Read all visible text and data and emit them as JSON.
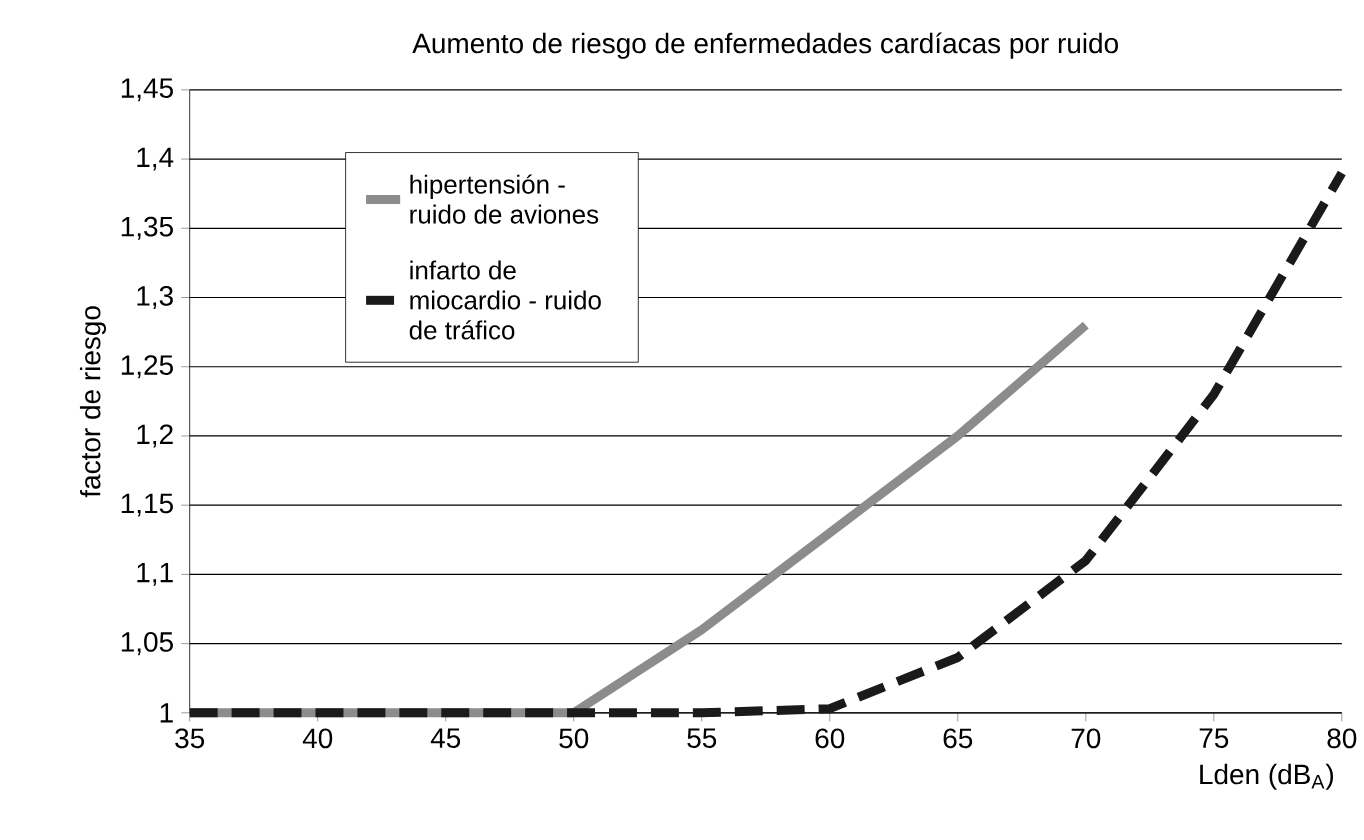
{
  "chart_data": {
    "type": "line",
    "title": "Aumento de riesgo de enfermedades cardíacas por ruido",
    "xlabel": "Lden (dB$_{A}$)",
    "ylabel": "factor de riesgo",
    "series": [
      {
        "name": "hipertensión - ruido de aviones",
        "color": "#8c8c8c",
        "line_style": "solid",
        "x": [
          35,
          40,
          45,
          50,
          55,
          60,
          65,
          70
        ],
        "values": [
          1,
          1,
          1,
          1,
          1.06,
          1.13,
          1.2,
          1.28
        ]
      },
      {
        "name": "infarto de miocardio - ruido de tráfico",
        "color": "#1a1a1a",
        "line_style": "dashed",
        "x": [
          35,
          40,
          45,
          50,
          55,
          60,
          65,
          70,
          75,
          80
        ],
        "values": [
          1,
          1,
          1,
          1,
          1,
          1.003,
          1.04,
          1.11,
          1.23,
          1.39
        ]
      }
    ],
    "xlim": [
      35,
      80
    ],
    "xticks": [
      35,
      40,
      45,
      50,
      55,
      60,
      65,
      70,
      75,
      80
    ],
    "ylim": [
      1,
      1.45
    ],
    "yticks": [
      1,
      {
        "value": 1.05,
        "label": "1,05"
      },
      {
        "value": 1.1,
        "label": "1,1"
      },
      {
        "value": 1.15,
        "label": "1,15"
      },
      {
        "value": 1.2,
        "label": "1,2"
      },
      {
        "value": 1.25,
        "label": "1,25"
      },
      {
        "value": 1.3,
        "label": "1,3"
      },
      {
        "value": 1.35,
        "label": "1,35"
      },
      {
        "value": 1.4,
        "label": "1,4"
      },
      {
        "value": 1.45,
        "label": "1,45"
      }
    ],
    "grid": "y",
    "legend": "top left",
    "marker": "none"
  }
}
